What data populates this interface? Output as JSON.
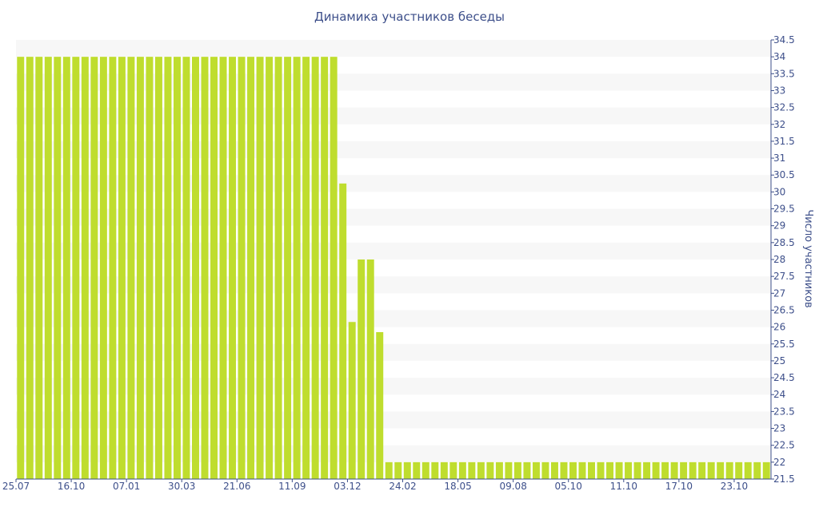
{
  "chart_data": {
    "type": "bar",
    "title": "Динамика участников беседы",
    "xlabel": "",
    "ylabel": "Число участников",
    "ylim": [
      21.5,
      34.5
    ],
    "ytick_step": 0.5,
    "grid": "alternating horizontal bands",
    "legend": "none",
    "bar_color": "#bfdd2e",
    "band_color": "#f7f7f7",
    "text_color": "#3d4f8a",
    "x_tick_labels": [
      {
        "label": "25.07",
        "index": 0
      },
      {
        "label": "16.10",
        "index": 6
      },
      {
        "label": "07.01",
        "index": 12
      },
      {
        "label": "30.03",
        "index": 18
      },
      {
        "label": "21.06",
        "index": 24
      },
      {
        "label": "11.09",
        "index": 30
      },
      {
        "label": "03.12",
        "index": 36
      },
      {
        "label": "24.02",
        "index": 42
      },
      {
        "label": "18.05",
        "index": 48
      },
      {
        "label": "09.08",
        "index": 54
      },
      {
        "label": "05.10",
        "index": 60
      },
      {
        "label": "11.10",
        "index": 66
      },
      {
        "label": "17.10",
        "index": 72
      },
      {
        "label": "23.10",
        "index": 78
      }
    ],
    "values": [
      34,
      34,
      34,
      34,
      34,
      34,
      34,
      34,
      34,
      34,
      34,
      34,
      34,
      34,
      34,
      34,
      34,
      34,
      34,
      34,
      34,
      34,
      34,
      34,
      34,
      34,
      34,
      34,
      34,
      34,
      34,
      34,
      34,
      34,
      34,
      30.25,
      26.15,
      28,
      28,
      25.85,
      22,
      22,
      22,
      22,
      22,
      22,
      22,
      22,
      22,
      22,
      22,
      22,
      22,
      22,
      22,
      22,
      22,
      22,
      22,
      22,
      22,
      22,
      22,
      22,
      22,
      22,
      22,
      22,
      22,
      22,
      22,
      22,
      22,
      22,
      22,
      22,
      22,
      22,
      22,
      22,
      22,
      22
    ]
  }
}
